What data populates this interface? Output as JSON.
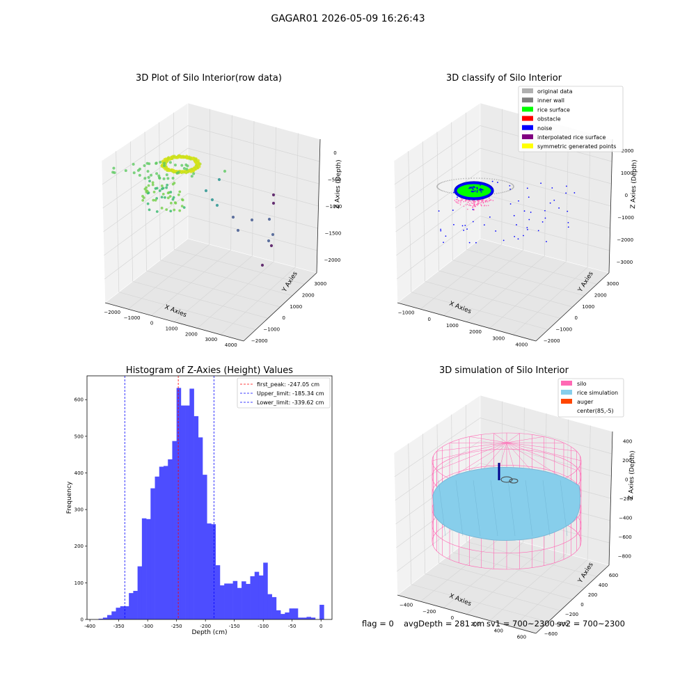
{
  "suptitle": "GAGAR01 2026-05-09 16:26:43",
  "chart_data": [
    {
      "type": "scatter",
      "title": "3D Plot of Silo Interior(row data)",
      "xlabel": "X Axies",
      "ylabel": "Y Axies",
      "zlabel": "Z Axies (Depth)",
      "x_ticks": [
        "−2000",
        "−1000",
        "0",
        "1000",
        "2000",
        "3000",
        "4000"
      ],
      "y_ticks": [
        "−2000",
        "−1000",
        "0",
        "1000",
        "2000",
        "3000"
      ],
      "z_ticks": [
        "0",
        "−500",
        "−1000",
        "−1500",
        "−2000"
      ],
      "colormap": [
        "#440154",
        "#3b528b",
        "#21918c",
        "#5ec962",
        "#fde725"
      ]
    },
    {
      "type": "scatter",
      "title": "3D classify of Silo Interior",
      "xlabel": "X Axies",
      "ylabel": "Y Axies",
      "zlabel": "Z Axies (Depth)",
      "x_ticks": [
        "−1000",
        "0",
        "1000",
        "2000",
        "3000",
        "4000"
      ],
      "y_ticks": [
        "−2000",
        "−1000",
        "0",
        "1000",
        "2000",
        "3000"
      ],
      "z_ticks": [
        "2000",
        "1000",
        "0",
        "−1000",
        "−2000",
        "−3000"
      ],
      "legend_position": "top-right",
      "legend": [
        {
          "label": "original data",
          "color": "#b0b0b0"
        },
        {
          "label": "inner wall",
          "color": "#808080"
        },
        {
          "label": "rice surface",
          "color": "#00ff00"
        },
        {
          "label": "obstacle",
          "color": "#ff0000"
        },
        {
          "label": "noise",
          "color": "#0000ff"
        },
        {
          "label": "interpolated rice surface",
          "color": "#800080"
        },
        {
          "label": "symmetric generated points",
          "color": "#ffff00"
        }
      ]
    },
    {
      "type": "bar",
      "title": "Histogram of Z-Axies (Height) Values",
      "xlabel": "Depth (cm)",
      "ylabel": "Frequency",
      "bar_color": "#4d4dff",
      "x_ticks": [
        -400,
        -350,
        -300,
        -250,
        -200,
        -150,
        -100,
        -50,
        0
      ],
      "y_ticks": [
        0,
        100,
        200,
        300,
        400,
        500,
        600
      ],
      "xlim": [
        -405,
        19
      ],
      "ylim": [
        0,
        665
      ],
      "bin_width": 7.5,
      "bins": [
        {
          "start": -385,
          "value": 2
        },
        {
          "start": -377.5,
          "value": 5
        },
        {
          "start": -370,
          "value": 12
        },
        {
          "start": -362.5,
          "value": 22
        },
        {
          "start": -355,
          "value": 32
        },
        {
          "start": -347.5,
          "value": 36
        },
        {
          "start": -340,
          "value": 36
        },
        {
          "start": -332.5,
          "value": 72
        },
        {
          "start": -325,
          "value": 78
        },
        {
          "start": -317.5,
          "value": 145
        },
        {
          "start": -310,
          "value": 276
        },
        {
          "start": -302.5,
          "value": 274
        },
        {
          "start": -295,
          "value": 358
        },
        {
          "start": -287.5,
          "value": 390
        },
        {
          "start": -280,
          "value": 417
        },
        {
          "start": -272.5,
          "value": 419
        },
        {
          "start": -265,
          "value": 437
        },
        {
          "start": -257.5,
          "value": 487
        },
        {
          "start": -250,
          "value": 632
        },
        {
          "start": -242.5,
          "value": 584
        },
        {
          "start": -235,
          "value": 584
        },
        {
          "start": -227.5,
          "value": 630
        },
        {
          "start": -220,
          "value": 555
        },
        {
          "start": -212.5,
          "value": 497
        },
        {
          "start": -205,
          "value": 395
        },
        {
          "start": -197.5,
          "value": 262
        },
        {
          "start": -190,
          "value": 260
        },
        {
          "start": -182.5,
          "value": 148
        },
        {
          "start": -175,
          "value": 93
        },
        {
          "start": -167.5,
          "value": 98
        },
        {
          "start": -160,
          "value": 98
        },
        {
          "start": -152.5,
          "value": 105
        },
        {
          "start": -145,
          "value": 86
        },
        {
          "start": -137.5,
          "value": 104
        },
        {
          "start": -130,
          "value": 97
        },
        {
          "start": -122.5,
          "value": 118
        },
        {
          "start": -115,
          "value": 130
        },
        {
          "start": -107.5,
          "value": 120
        },
        {
          "start": -100,
          "value": 155
        },
        {
          "start": -92.5,
          "value": 69
        },
        {
          "start": -85,
          "value": 61
        },
        {
          "start": -77.5,
          "value": 25
        },
        {
          "start": -70,
          "value": 15
        },
        {
          "start": -62.5,
          "value": 19
        },
        {
          "start": -55,
          "value": 30
        },
        {
          "start": -47.5,
          "value": 30
        },
        {
          "start": -40,
          "value": 5
        },
        {
          "start": -32.5,
          "value": 5
        },
        {
          "start": -25,
          "value": 7
        },
        {
          "start": -17.5,
          "value": 5
        },
        {
          "start": -10,
          "value": 0
        },
        {
          "start": -2.5,
          "value": 40
        }
      ],
      "vlines": [
        {
          "label": "first_peak: -247.05 cm",
          "x": -247.05,
          "color": "#ff0000"
        },
        {
          "label": "Upper_limit: -185.34 cm",
          "x": -185.34,
          "color": "#0000ff"
        },
        {
          "label": "Lower_limit: -339.62 cm",
          "x": -339.62,
          "color": "#0000ff"
        }
      ],
      "legend_position": "top-right"
    },
    {
      "type": "scatter",
      "title": "3D simulation of Silo Interior",
      "xlabel": "X Axies",
      "ylabel": "Y Axies",
      "zlabel": "Z Axies (Depth)",
      "x_ticks": [
        "−400",
        "−200",
        "0",
        "200",
        "400",
        "600"
      ],
      "y_ticks": [
        "−600",
        "−400",
        "−200",
        "0",
        "200",
        "400",
        "600"
      ],
      "z_ticks": [
        "400",
        "200",
        "0",
        "−200",
        "−400",
        "−600",
        "−800"
      ],
      "legend_position": "top-right",
      "legend": [
        {
          "label": "silo",
          "color": "#ff69b4"
        },
        {
          "label": "rice simulation",
          "color": "#87ceeb"
        },
        {
          "label": "auger",
          "color": "#ff4500"
        },
        {
          "label": "center(85,-5)",
          "color": "#ffffff"
        }
      ]
    }
  ],
  "footer": {
    "flag": "flag = 0",
    "avg_depth": "avgDepth = 281 cm",
    "sv1": "sv1 = 700~2300",
    "sv2": "sv2 = 700~2300"
  }
}
